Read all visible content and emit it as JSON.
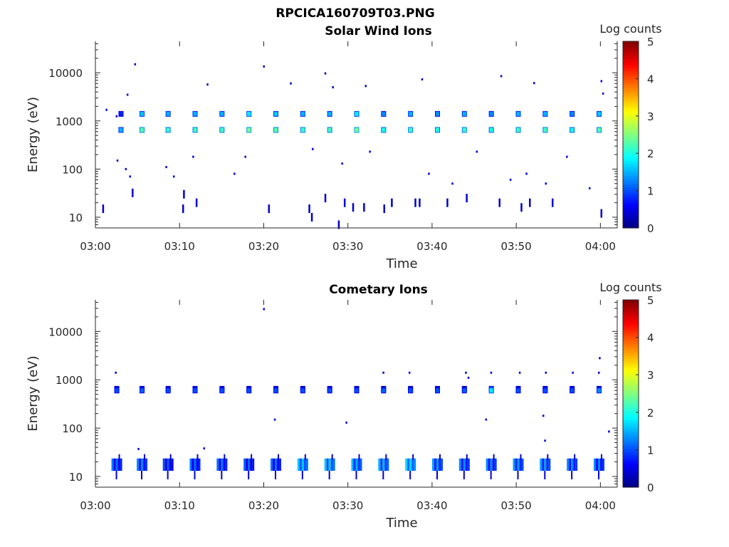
{
  "figure_title": "RPCICA160709T03.PNG",
  "chart_data": [
    {
      "type": "heatmap",
      "title": "Solar Wind Ions",
      "xlabel": "Time",
      "ylabel": "Energy (eV)",
      "yscale": "log",
      "ylim": [
        6,
        45000
      ],
      "xlim": [
        "03:00",
        "04:02"
      ],
      "xticks": [
        "03:00",
        "03:10",
        "03:20",
        "03:30",
        "03:40",
        "03:50",
        "04:00"
      ],
      "yticks": [
        "10",
        "100",
        "1000",
        "10000"
      ],
      "colorbar": {
        "label": "Log counts",
        "min": 0,
        "max": 5,
        "ticks": [
          "0",
          "1",
          "2",
          "3",
          "4",
          "5"
        ],
        "colormap": "jet"
      },
      "band_times": [
        3.0,
        5.5,
        8.6,
        11.8,
        15.0,
        18.2,
        21.4,
        24.6,
        27.8,
        31.0,
        34.2,
        37.4,
        40.6,
        43.8,
        47.0,
        50.2,
        53.4,
        56.6,
        59.8
      ],
      "main_band": {
        "energy_low": 650,
        "energy_high": 1400,
        "peak_log_counts": [
          1.5,
          2.3,
          2.2,
          2.2,
          2.2,
          2.5,
          2.3,
          2.2,
          2.2,
          2.5,
          2.0,
          2.2,
          2.0,
          2.2,
          2.0,
          2.2,
          2.2,
          2.0,
          2.3
        ]
      },
      "sparse_points": [
        [
          1.3,
          1700,
          0.6
        ],
        [
          2.5,
          1250,
          0.6
        ],
        [
          3.8,
          3500,
          0.4
        ],
        [
          4.7,
          15000,
          0.3
        ],
        [
          4.4,
          32,
          0.5
        ],
        [
          13.3,
          5700,
          0.4
        ],
        [
          20.0,
          13500,
          0.4
        ],
        [
          23.2,
          6000,
          0.4
        ],
        [
          27.3,
          9700,
          0.3
        ],
        [
          28.2,
          5000,
          0.4
        ],
        [
          32.1,
          5300,
          0.4
        ],
        [
          38.8,
          7300,
          0.4
        ],
        [
          48.2,
          8500,
          0.4
        ],
        [
          52.1,
          6100,
          0.4
        ],
        [
          60.1,
          6700,
          0.5
        ],
        [
          60.3,
          3700,
          0.4
        ],
        [
          2.6,
          150,
          0.5
        ],
        [
          3.6,
          100,
          0.5
        ],
        [
          4.1,
          70,
          0.5
        ],
        [
          8.4,
          110,
          0.5
        ],
        [
          9.3,
          70,
          0.5
        ],
        [
          16.5,
          80,
          0.5
        ],
        [
          29.3,
          130,
          0.5
        ],
        [
          32.6,
          230,
          0.5
        ],
        [
          39.6,
          80,
          0.5
        ],
        [
          42.4,
          50,
          0.5
        ],
        [
          49.3,
          60,
          0.5
        ],
        [
          51.2,
          80,
          0.5
        ],
        [
          53.5,
          50,
          0.5
        ],
        [
          58.7,
          40,
          0.5
        ],
        [
          56.0,
          180,
          0.5
        ],
        [
          11.6,
          180,
          0.5
        ],
        [
          17.8,
          180,
          0.5
        ],
        [
          25.8,
          260,
          0.5
        ],
        [
          45.3,
          230,
          0.5
        ]
      ],
      "low_energy_streaks": [
        [
          0.9,
          15
        ],
        [
          4.4,
          32
        ],
        [
          10.5,
          30
        ],
        [
          10.4,
          15
        ],
        [
          12.0,
          20
        ],
        [
          20.6,
          15
        ],
        [
          25.4,
          15
        ],
        [
          25.7,
          10
        ],
        [
          27.3,
          25
        ],
        [
          29.6,
          20
        ],
        [
          30.6,
          16
        ],
        [
          31.9,
          16
        ],
        [
          34.3,
          15
        ],
        [
          35.2,
          20
        ],
        [
          38.0,
          20
        ],
        [
          38.5,
          20
        ],
        [
          41.8,
          20
        ],
        [
          44.1,
          25
        ],
        [
          48.0,
          20
        ],
        [
          50.6,
          16
        ],
        [
          51.6,
          20
        ],
        [
          54.3,
          20
        ],
        [
          60.1,
          12
        ],
        [
          28.9,
          7
        ]
      ]
    },
    {
      "type": "heatmap",
      "title": "Cometary Ions",
      "xlabel": "Time",
      "ylabel": "Energy (eV)",
      "yscale": "log",
      "ylim": [
        6,
        45000
      ],
      "xlim": [
        "03:00",
        "04:02"
      ],
      "xticks": [
        "03:00",
        "03:10",
        "03:20",
        "03:30",
        "03:40",
        "03:50",
        "04:00"
      ],
      "yticks": [
        "10",
        "100",
        "1000",
        "10000"
      ],
      "colorbar": {
        "label": "Log counts",
        "min": 0,
        "max": 5,
        "ticks": [
          "0",
          "1",
          "2",
          "3",
          "4",
          "5"
        ],
        "colormap": "jet"
      },
      "band_times": [
        2.5,
        5.5,
        8.6,
        11.8,
        15.0,
        18.2,
        21.4,
        24.6,
        27.8,
        31.0,
        34.2,
        37.4,
        40.6,
        43.8,
        47.0,
        50.2,
        53.4,
        56.6,
        59.8
      ],
      "main_band": {
        "energy_low": 600,
        "energy_high": 650,
        "peak_log_counts": [
          1.0,
          1.1,
          1.0,
          1.0,
          1.0,
          1.0,
          1.0,
          1.0,
          1.0,
          1.0,
          1.1,
          1.0,
          1.0,
          1.1,
          1.8,
          1.0,
          1.0,
          1.0,
          1.3
        ]
      },
      "sparse_points": [
        [
          2.4,
          1400,
          0.5
        ],
        [
          20.0,
          29000,
          0.5
        ],
        [
          21.3,
          150,
          0.5
        ],
        [
          29.8,
          130,
          0.5
        ],
        [
          34.2,
          1400,
          0.5
        ],
        [
          37.3,
          1400,
          0.5
        ],
        [
          44.0,
          1400,
          0.5
        ],
        [
          44.3,
          1100,
          0.5
        ],
        [
          47.0,
          1400,
          0.5
        ],
        [
          50.4,
          1400,
          0.5
        ],
        [
          53.5,
          1400,
          0.5
        ],
        [
          56.7,
          1400,
          0.5
        ],
        [
          59.8,
          1400,
          0.5
        ],
        [
          59.9,
          2800,
          0.5
        ],
        [
          46.4,
          150,
          0.5
        ],
        [
          53.2,
          180,
          0.5
        ],
        [
          53.4,
          55,
          0.5
        ],
        [
          61.0,
          85,
          0.5
        ],
        [
          5.1,
          37,
          0.5
        ],
        [
          12.9,
          38,
          0.5
        ]
      ],
      "low_band": {
        "energy_low": 14,
        "energy_high": 22,
        "peak_log_counts": [
          1.2,
          1.3,
          1.0,
          1.2,
          1.2,
          1.1,
          1.2,
          1.6,
          1.6,
          1.5,
          1.5,
          1.7,
          1.4,
          1.3,
          1.3,
          1.4,
          1.4,
          1.3,
          1.3
        ]
      }
    }
  ]
}
